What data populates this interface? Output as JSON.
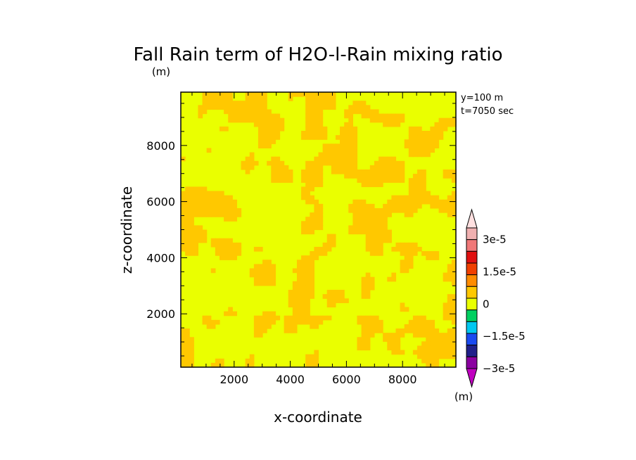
{
  "chart_data": {
    "type": "heatmap",
    "title": "Fall Rain term of H2O-l-Rain mixing ratio",
    "title_unit": "(m)",
    "annotations": [
      "y=100 m",
      "t=7050 sec"
    ],
    "xlabel": "x-coordinate",
    "ylabel": "z-coordinate",
    "xlim": [
      100,
      9900
    ],
    "ylim": [
      100,
      9900
    ],
    "xticks": [
      2000,
      4000,
      6000,
      8000
    ],
    "yticks": [
      2000,
      4000,
      6000,
      8000
    ],
    "xtick_labels": [
      "2000",
      "4000",
      "6000",
      "8000"
    ],
    "ytick_labels": [
      "2000",
      "4000",
      "6000",
      "8000"
    ],
    "colorbar": {
      "unit_label": "(m)",
      "labels": [
        {
          "text": "3e-5",
          "value": 3e-05
        },
        {
          "text": "1.5e-5",
          "value": 1.5e-05
        },
        {
          "text": "0",
          "value": 0
        },
        {
          "text": "−1.5e-5",
          "value": -1.5e-05
        },
        {
          "text": "−3e-5",
          "value": -3e-05
        }
      ],
      "levels": [
        {
          "color": "#8a00a0",
          "label": "-3e-5"
        },
        {
          "color": "#20208a",
          "label": ""
        },
        {
          "color": "#1a4af0",
          "label": ""
        },
        {
          "color": "#00c8f0",
          "label": "-1.5e-5"
        },
        {
          "color": "#00d060",
          "label": ""
        },
        {
          "color": "#eaff00",
          "label": "0"
        },
        {
          "color": "#ffc800",
          "label": ""
        },
        {
          "color": "#ff8c00",
          "label": ""
        },
        {
          "color": "#f04000",
          "label": "1.5e-5"
        },
        {
          "color": "#e01010",
          "label": ""
        },
        {
          "color": "#f07878",
          "label": ""
        },
        {
          "color": "#f0b0b0",
          "label": "3e-5"
        }
      ],
      "top_extend_color": "#ffe0e0",
      "bottom_extend_color": "#c000c0"
    },
    "field": {
      "background_color": "#eaff00",
      "patch_color": "#ffc800",
      "description_values": "field mostly 0 to slightly positive; patches in lower-positive level"
    }
  }
}
